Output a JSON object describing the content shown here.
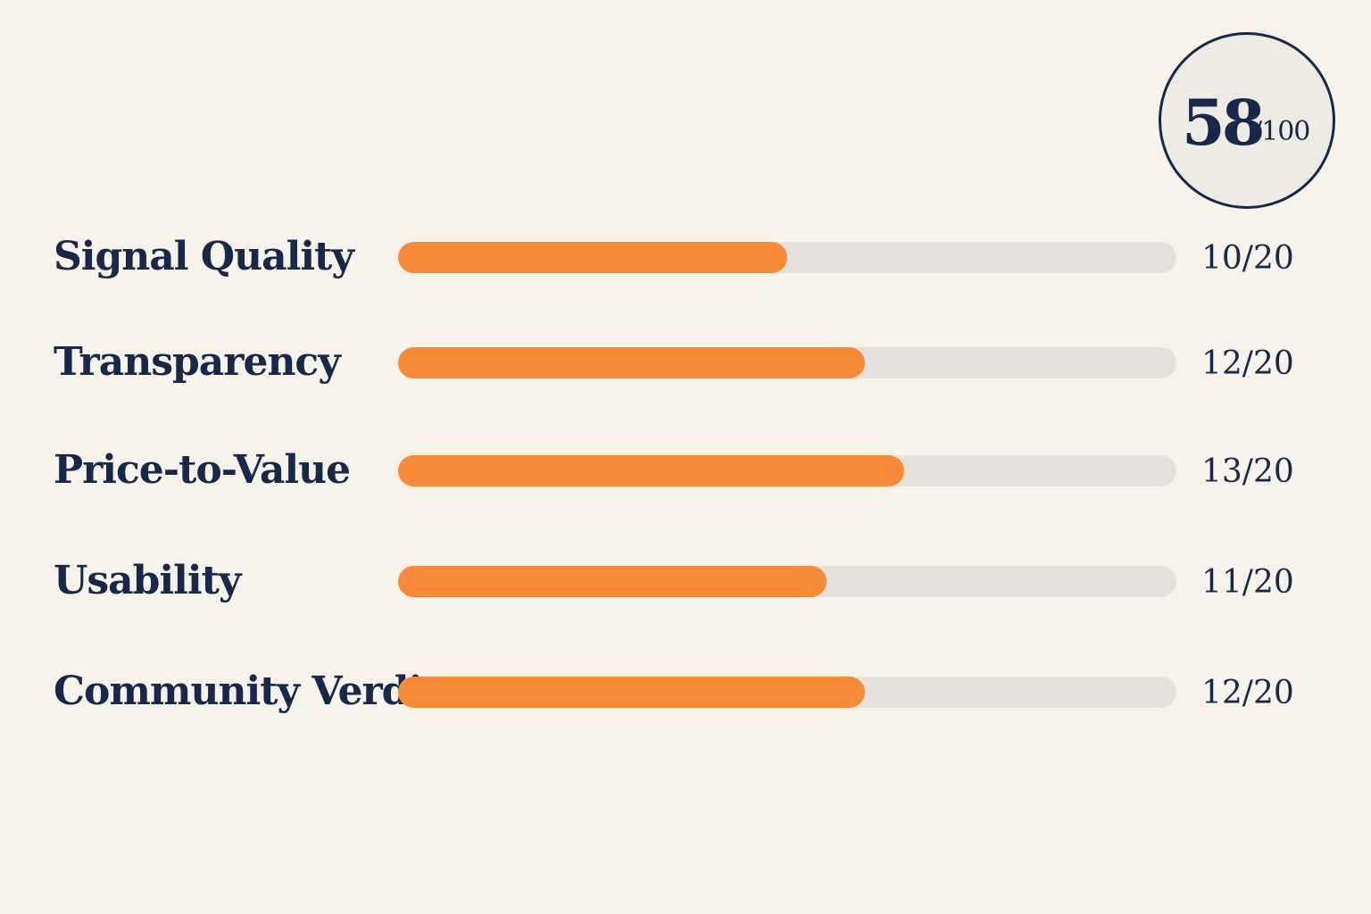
{
  "total": {
    "value": "58",
    "max_label": "/100",
    "score": 58,
    "max": 100
  },
  "chart_data": {
    "type": "bar",
    "orientation": "horizontal",
    "categories": [
      "Signal Quality",
      "Transparency",
      "Price-to-Value",
      "Usability",
      "Community Verdict"
    ],
    "values": [
      10,
      12,
      13,
      11,
      12
    ],
    "value_labels": [
      "10/20",
      "12/20",
      "13/20",
      "11/20",
      "12/20"
    ],
    "xlim": [
      0,
      20
    ],
    "title": "",
    "xlabel": "",
    "ylabel": "",
    "grid": false,
    "colors": {
      "fill": "#f68a37",
      "track": "#e4e1dc",
      "text": "#16294a",
      "background": "#f7f2ea"
    }
  }
}
